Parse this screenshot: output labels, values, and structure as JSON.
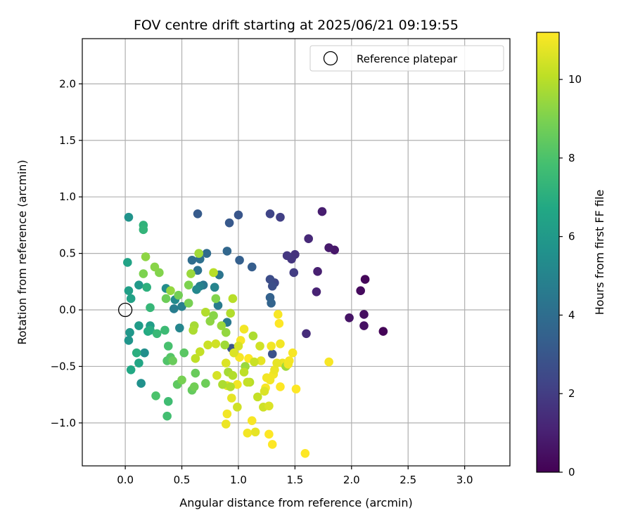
{
  "chart_data": {
    "type": "scatter",
    "title": "FOV centre drift starting at 2025/06/21 09:19:55",
    "xlabel": "Angular distance from reference (arcmin)",
    "ylabel": "Rotation from reference (arcmin)",
    "xlim": [
      -0.38,
      3.4
    ],
    "ylim": [
      -1.38,
      2.4
    ],
    "xticks": [
      0.0,
      0.5,
      1.0,
      1.5,
      2.0,
      2.5,
      3.0
    ],
    "xtick_labels": [
      "0.0",
      "0.5",
      "1.0",
      "1.5",
      "2.0",
      "2.5",
      "3.0"
    ],
    "yticks": [
      -1.0,
      -0.5,
      0.0,
      0.5,
      1.0,
      1.5,
      2.0
    ],
    "ytick_labels": [
      "−1.0",
      "−0.5",
      "0.0",
      "0.5",
      "1.0",
      "1.5",
      "2.0"
    ],
    "grid": true,
    "legend": {
      "placement": "top-right",
      "entries": [
        {
          "label": "Reference platepar",
          "marker": "open-circle"
        }
      ]
    },
    "reference_point": {
      "x": 0.0,
      "y": 0.0
    },
    "colorbar": {
      "label": "Hours from first FF file",
      "colormap": "viridis",
      "range": [
        0,
        11.2
      ],
      "ticks": [
        0,
        2,
        4,
        6,
        8,
        10
      ],
      "tick_labels": [
        "0",
        "2",
        "4",
        "6",
        "8",
        "10"
      ]
    },
    "points": [
      {
        "x": 2.28,
        "y": -0.19,
        "h": 0.1
      },
      {
        "x": 2.12,
        "y": 0.27,
        "h": 0.2
      },
      {
        "x": 2.08,
        "y": 0.17,
        "h": 0.3
      },
      {
        "x": 2.11,
        "y": -0.04,
        "h": 0.4
      },
      {
        "x": 2.11,
        "y": -0.14,
        "h": 0.5
      },
      {
        "x": 1.98,
        "y": -0.07,
        "h": 0.6
      },
      {
        "x": 1.85,
        "y": 0.53,
        "h": 0.7
      },
      {
        "x": 1.8,
        "y": 0.55,
        "h": 0.8
      },
      {
        "x": 1.74,
        "y": 0.87,
        "h": 0.9
      },
      {
        "x": 1.7,
        "y": 0.34,
        "h": 1.0
      },
      {
        "x": 1.69,
        "y": 0.16,
        "h": 1.1
      },
      {
        "x": 1.62,
        "y": 0.63,
        "h": 1.3
      },
      {
        "x": 1.6,
        "y": -0.21,
        "h": 1.4
      },
      {
        "x": 1.5,
        "y": 0.49,
        "h": 1.6
      },
      {
        "x": 1.47,
        "y": 0.45,
        "h": 1.7
      },
      {
        "x": 1.43,
        "y": 0.48,
        "h": 1.8
      },
      {
        "x": 1.49,
        "y": 0.33,
        "h": 2.0
      },
      {
        "x": 1.37,
        "y": 0.82,
        "h": 2.1
      },
      {
        "x": 1.28,
        "y": 0.85,
        "h": 2.3
      },
      {
        "x": 1.32,
        "y": 0.24,
        "h": 2.4
      },
      {
        "x": 1.28,
        "y": 0.27,
        "h": 2.6
      },
      {
        "x": 1.3,
        "y": 0.21,
        "h": 2.7
      },
      {
        "x": 1.3,
        "y": -0.39,
        "h": 2.8
      },
      {
        "x": 0.94,
        "y": -0.34,
        "h": 2.9
      },
      {
        "x": 1.0,
        "y": 0.84,
        "h": 3.0
      },
      {
        "x": 0.92,
        "y": 0.77,
        "h": 3.1
      },
      {
        "x": 0.64,
        "y": 0.85,
        "h": 3.2
      },
      {
        "x": 1.12,
        "y": 0.38,
        "h": 3.3
      },
      {
        "x": 1.01,
        "y": 0.44,
        "h": 3.4
      },
      {
        "x": 1.28,
        "y": 0.11,
        "h": 3.5
      },
      {
        "x": 1.29,
        "y": 0.06,
        "h": 3.6
      },
      {
        "x": 0.9,
        "y": 0.52,
        "h": 3.7
      },
      {
        "x": 0.72,
        "y": 0.5,
        "h": 3.9
      },
      {
        "x": 0.59,
        "y": 0.44,
        "h": 4.0
      },
      {
        "x": 0.66,
        "y": 0.45,
        "h": 4.1
      },
      {
        "x": 0.64,
        "y": 0.35,
        "h": 4.2
      },
      {
        "x": 0.83,
        "y": 0.31,
        "h": 4.3
      },
      {
        "x": 0.69,
        "y": 0.22,
        "h": 4.4
      },
      {
        "x": 0.9,
        "y": -0.11,
        "h": 4.5
      },
      {
        "x": 0.82,
        "y": 0.04,
        "h": 4.6
      },
      {
        "x": 0.43,
        "y": 0.01,
        "h": 4.7
      },
      {
        "x": 0.5,
        "y": 0.03,
        "h": 4.8
      },
      {
        "x": 0.66,
        "y": 0.21,
        "h": 4.9
      },
      {
        "x": 0.79,
        "y": 0.2,
        "h": 5.0
      },
      {
        "x": 0.48,
        "y": -0.16,
        "h": 5.1
      },
      {
        "x": 0.63,
        "y": 0.18,
        "h": 5.2
      },
      {
        "x": 0.44,
        "y": 0.09,
        "h": 5.3
      },
      {
        "x": 0.36,
        "y": 0.19,
        "h": 5.4
      },
      {
        "x": 0.17,
        "y": -0.38,
        "h": 5.5
      },
      {
        "x": 0.14,
        "y": -0.65,
        "h": 5.6
      },
      {
        "x": 0.03,
        "y": 0.82,
        "h": 5.7
      },
      {
        "x": 0.03,
        "y": -0.27,
        "h": 5.8
      },
      {
        "x": 0.04,
        "y": -0.2,
        "h": 5.9
      },
      {
        "x": 0.12,
        "y": 0.22,
        "h": 6.0
      },
      {
        "x": 0.12,
        "y": -0.14,
        "h": 6.1
      },
      {
        "x": 0.22,
        "y": -0.14,
        "h": 6.2
      },
      {
        "x": 0.03,
        "y": 0.17,
        "h": 6.3
      },
      {
        "x": 0.05,
        "y": 0.1,
        "h": 6.4
      },
      {
        "x": 0.02,
        "y": 0.42,
        "h": 6.5
      },
      {
        "x": 0.12,
        "y": -0.47,
        "h": 6.6
      },
      {
        "x": 0.05,
        "y": -0.53,
        "h": 6.7
      },
      {
        "x": 0.2,
        "y": -0.19,
        "h": 6.8
      },
      {
        "x": 0.22,
        "y": -0.18,
        "h": 6.9
      },
      {
        "x": 0.1,
        "y": -0.38,
        "h": 7.0
      },
      {
        "x": 0.19,
        "y": 0.2,
        "h": 7.1
      },
      {
        "x": 0.16,
        "y": 0.75,
        "h": 7.2
      },
      {
        "x": 0.16,
        "y": 0.71,
        "h": 7.3
      },
      {
        "x": 0.22,
        "y": 0.02,
        "h": 7.4
      },
      {
        "x": 0.28,
        "y": -0.21,
        "h": 7.5
      },
      {
        "x": 0.35,
        "y": -0.18,
        "h": 7.6
      },
      {
        "x": 0.38,
        "y": -0.81,
        "h": 7.7
      },
      {
        "x": 0.37,
        "y": -0.94,
        "h": 7.8
      },
      {
        "x": 0.38,
        "y": -0.32,
        "h": 7.9
      },
      {
        "x": 0.27,
        "y": -0.76,
        "h": 8.0
      },
      {
        "x": 0.37,
        "y": -0.45,
        "h": 8.1
      },
      {
        "x": 0.4,
        "y": -0.42,
        "h": 8.2
      },
      {
        "x": 0.52,
        "y": -0.38,
        "h": 8.3
      },
      {
        "x": 0.46,
        "y": -0.66,
        "h": 8.4
      },
      {
        "x": 0.59,
        "y": -0.71,
        "h": 8.5
      },
      {
        "x": 0.62,
        "y": -0.56,
        "h": 8.6
      },
      {
        "x": 0.71,
        "y": -0.65,
        "h": 8.7
      },
      {
        "x": 0.61,
        "y": -0.68,
        "h": 8.8
      },
      {
        "x": 0.5,
        "y": -0.62,
        "h": 8.9
      },
      {
        "x": 0.16,
        "y": 0.32,
        "h": 9.0
      },
      {
        "x": 0.3,
        "y": 0.33,
        "h": 9.1
      },
      {
        "x": 0.26,
        "y": 0.38,
        "h": 9.2
      },
      {
        "x": 0.18,
        "y": 0.47,
        "h": 9.3
      },
      {
        "x": 0.4,
        "y": 0.17,
        "h": 9.4
      },
      {
        "x": 0.58,
        "y": 0.32,
        "h": 9.5
      },
      {
        "x": 0.65,
        "y": 0.5,
        "h": 9.6
      },
      {
        "x": 0.61,
        "y": -0.14,
        "h": 9.7
      },
      {
        "x": 0.6,
        "y": -0.18,
        "h": 9.8
      },
      {
        "x": 0.71,
        "y": -0.02,
        "h": 9.9
      },
      {
        "x": 0.78,
        "y": 0.33,
        "h": 10.0
      },
      {
        "x": 0.62,
        "y": -0.43,
        "h": 10.1
      },
      {
        "x": 0.66,
        "y": -0.37,
        "h": 10.2
      },
      {
        "x": 0.73,
        "y": -0.31,
        "h": 10.3
      },
      {
        "x": 0.8,
        "y": -0.3,
        "h": 10.4
      },
      {
        "x": 0.81,
        "y": -0.58,
        "h": 10.5
      },
      {
        "x": 0.89,
        "y": -0.47,
        "h": 10.6
      },
      {
        "x": 0.9,
        "y": -0.67,
        "h": 10.7
      },
      {
        "x": 0.94,
        "y": -0.78,
        "h": 10.8
      },
      {
        "x": 0.89,
        "y": -1.01,
        "h": 10.9
      },
      {
        "x": 0.9,
        "y": -0.92,
        "h": 11.0
      },
      {
        "x": 0.99,
        "y": -0.66,
        "h": 11.0
      },
      {
        "x": 1.01,
        "y": -0.42,
        "h": 11.1
      },
      {
        "x": 1.02,
        "y": -0.27,
        "h": 11.1
      },
      {
        "x": 1.09,
        "y": -0.43,
        "h": 11.2
      },
      {
        "x": 1.06,
        "y": -0.5,
        "h": 9.5
      },
      {
        "x": 1.13,
        "y": -0.23,
        "h": 9.8
      },
      {
        "x": 1.1,
        "y": -0.64,
        "h": 10.0
      },
      {
        "x": 1.17,
        "y": -0.77,
        "h": 10.2
      },
      {
        "x": 1.22,
        "y": -0.86,
        "h": 10.4
      },
      {
        "x": 1.27,
        "y": -0.85,
        "h": 10.6
      },
      {
        "x": 1.2,
        "y": -0.45,
        "h": 10.8
      },
      {
        "x": 1.29,
        "y": -0.32,
        "h": 11.0
      },
      {
        "x": 1.35,
        "y": -0.04,
        "h": 11.1
      },
      {
        "x": 1.36,
        "y": -0.12,
        "h": 11.2
      },
      {
        "x": 1.37,
        "y": -0.3,
        "h": 11.0
      },
      {
        "x": 1.39,
        "y": -0.47,
        "h": 10.9
      },
      {
        "x": 1.42,
        "y": -0.5,
        "h": 9.6
      },
      {
        "x": 1.48,
        "y": -0.38,
        "h": 11.1
      },
      {
        "x": 1.51,
        "y": -0.7,
        "h": 11.2
      },
      {
        "x": 1.28,
        "y": -0.62,
        "h": 11.0
      },
      {
        "x": 1.31,
        "y": -0.57,
        "h": 11.0
      },
      {
        "x": 1.32,
        "y": -0.53,
        "h": 10.9
      },
      {
        "x": 1.24,
        "y": -0.69,
        "h": 11.1
      },
      {
        "x": 1.27,
        "y": -1.1,
        "h": 11.2
      },
      {
        "x": 1.3,
        "y": -1.19,
        "h": 11.2
      },
      {
        "x": 1.12,
        "y": -0.98,
        "h": 11.1
      },
      {
        "x": 1.08,
        "y": -1.09,
        "h": 11.0
      },
      {
        "x": 1.15,
        "y": -1.08,
        "h": 10.8
      },
      {
        "x": 1.59,
        "y": -1.27,
        "h": 11.2
      },
      {
        "x": 1.8,
        "y": -0.46,
        "h": 11.1
      },
      {
        "x": 1.37,
        "y": -0.68,
        "h": 11.2
      },
      {
        "x": 1.45,
        "y": -0.45,
        "h": 11.1
      },
      {
        "x": 1.44,
        "y": -0.48,
        "h": 11.0
      },
      {
        "x": 1.34,
        "y": -0.47,
        "h": 10.8
      },
      {
        "x": 0.95,
        "y": 0.1,
        "h": 10.0
      },
      {
        "x": 0.93,
        "y": -0.03,
        "h": 9.9
      },
      {
        "x": 1.0,
        "y": -0.32,
        "h": 10.5
      },
      {
        "x": 1.05,
        "y": -0.17,
        "h": 11.0
      },
      {
        "x": 0.96,
        "y": -0.38,
        "h": 10.6
      },
      {
        "x": 0.99,
        "y": -0.86,
        "h": 10.4
      },
      {
        "x": 0.91,
        "y": -0.55,
        "h": 9.7
      },
      {
        "x": 0.88,
        "y": -0.31,
        "h": 9.6
      },
      {
        "x": 0.85,
        "y": -0.14,
        "h": 9.5
      },
      {
        "x": 0.89,
        "y": -0.2,
        "h": 9.4
      },
      {
        "x": 0.75,
        "y": -0.1,
        "h": 9.3
      },
      {
        "x": 0.78,
        "y": -0.05,
        "h": 9.2
      },
      {
        "x": 0.8,
        "y": 0.1,
        "h": 9.1
      },
      {
        "x": 0.56,
        "y": 0.22,
        "h": 9.0
      },
      {
        "x": 0.56,
        "y": 0.06,
        "h": 8.9
      },
      {
        "x": 0.47,
        "y": 0.13,
        "h": 8.8
      },
      {
        "x": 0.36,
        "y": 0.1,
        "h": 8.7
      },
      {
        "x": 0.42,
        "y": -0.45,
        "h": 8.6
      },
      {
        "x": 1.14,
        "y": -0.46,
        "h": 10.3
      },
      {
        "x": 1.19,
        "y": -0.32,
        "h": 10.4
      },
      {
        "x": 1.23,
        "y": -0.72,
        "h": 10.6
      },
      {
        "x": 1.08,
        "y": -0.64,
        "h": 10.2
      },
      {
        "x": 1.05,
        "y": -0.55,
        "h": 10.1
      },
      {
        "x": 0.95,
        "y": -0.58,
        "h": 9.9
      },
      {
        "x": 0.86,
        "y": -0.66,
        "h": 9.8
      },
      {
        "x": 0.93,
        "y": -0.68,
        "h": 9.9
      },
      {
        "x": 1.25,
        "y": -0.6,
        "h": 11.0
      }
    ]
  }
}
